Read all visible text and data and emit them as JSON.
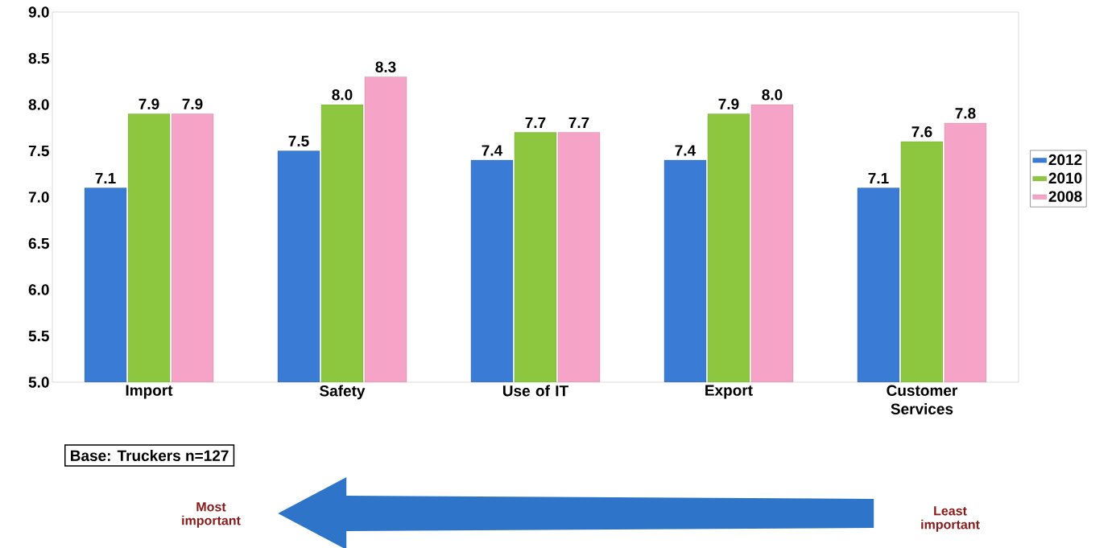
{
  "chart_data": {
    "type": "bar",
    "categories": [
      "Import",
      "Safety",
      "Use of IT",
      "Export",
      "Customer Services"
    ],
    "series": [
      {
        "name": "2012",
        "color": "#3a7bd5",
        "values": [
          7.1,
          7.5,
          7.4,
          7.4,
          7.1
        ],
        "value_labels": [
          "7.1",
          "7.5",
          "7.4",
          "7.4",
          "7.1"
        ]
      },
      {
        "name": "2010",
        "color": "#8dc63f",
        "values": [
          7.9,
          8.0,
          7.7,
          7.9,
          7.6
        ],
        "value_labels": [
          "7.9",
          "8.0",
          "7.7",
          "7.9",
          "7.6"
        ]
      },
      {
        "name": "2008",
        "color": "#f5a3c7",
        "values": [
          7.9,
          8.3,
          7.7,
          8.0,
          7.8
        ],
        "value_labels": [
          "7.9",
          "8.3",
          "7.7",
          "8.0",
          "7.8"
        ]
      }
    ],
    "ylim": [
      5,
      9
    ],
    "yticks": [
      {
        "value": 5,
        "label": "5.0"
      },
      5.5,
      {
        "value": 6,
        "label": "6.0"
      },
      6.5,
      {
        "value": 7,
        "label": "7.0"
      },
      7.5,
      {
        "value": 8,
        "label": "8.0"
      },
      8.5,
      {
        "value": 9,
        "label": "9.0"
      }
    ],
    "legend": "right",
    "grid": false,
    "annotations": [
      "Base: Truckers n=127",
      "Most important",
      "Least important"
    ]
  }
}
